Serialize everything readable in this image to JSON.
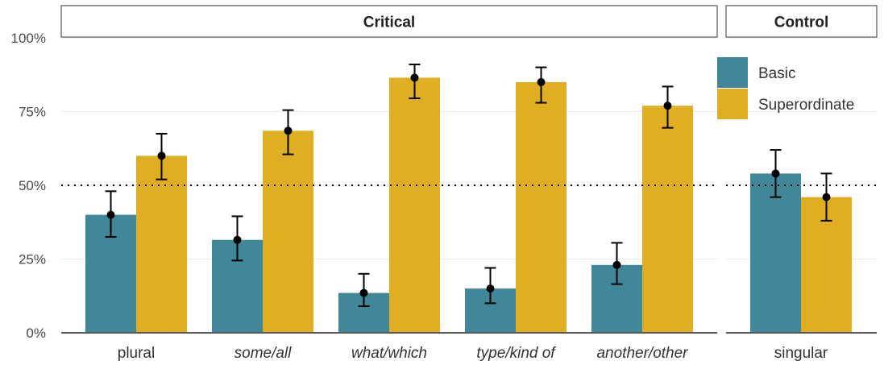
{
  "chart_data": {
    "type": "bar",
    "y_ticks": [
      "0%",
      "25%",
      "50%",
      "75%",
      "100%"
    ],
    "ylim": [
      0,
      100
    ],
    "reference_line": 50,
    "grid": true,
    "legend_position": "top-right",
    "colors": {
      "Basic": "#3f8799",
      "Superordinate": "#e0ae23"
    },
    "panels": [
      {
        "strip": "Critical",
        "categories": [
          {
            "label": "plural",
            "italic": false
          },
          {
            "label": "some/all",
            "italic": true
          },
          {
            "label": "what/which",
            "italic": true
          },
          {
            "label": "type/kind of",
            "italic": true
          },
          {
            "label": "another/other",
            "italic": true
          }
        ],
        "series": [
          {
            "name": "Basic",
            "values": [
              40,
              31.5,
              13.5,
              15,
              23
            ],
            "error_low": [
              32.5,
              24.5,
              9,
              10,
              16.5
            ],
            "error_high": [
              48,
              39.5,
              20,
              22,
              30.5
            ]
          },
          {
            "name": "Superordinate",
            "values": [
              60,
              68.5,
              86.5,
              85,
              77
            ],
            "error_low": [
              52,
              60.5,
              79.5,
              78,
              69.5
            ],
            "error_high": [
              67.5,
              75.5,
              91,
              90,
              83.5
            ]
          }
        ]
      },
      {
        "strip": "Control",
        "categories": [
          {
            "label": "singular",
            "italic": false
          }
        ],
        "series": [
          {
            "name": "Basic",
            "values": [
              54
            ],
            "error_low": [
              46
            ],
            "error_high": [
              62
            ]
          },
          {
            "name": "Superordinate",
            "values": [
              46
            ],
            "error_low": [
              38
            ],
            "error_high": [
              54
            ]
          }
        ]
      }
    ],
    "legend": [
      "Basic",
      "Superordinate"
    ]
  }
}
